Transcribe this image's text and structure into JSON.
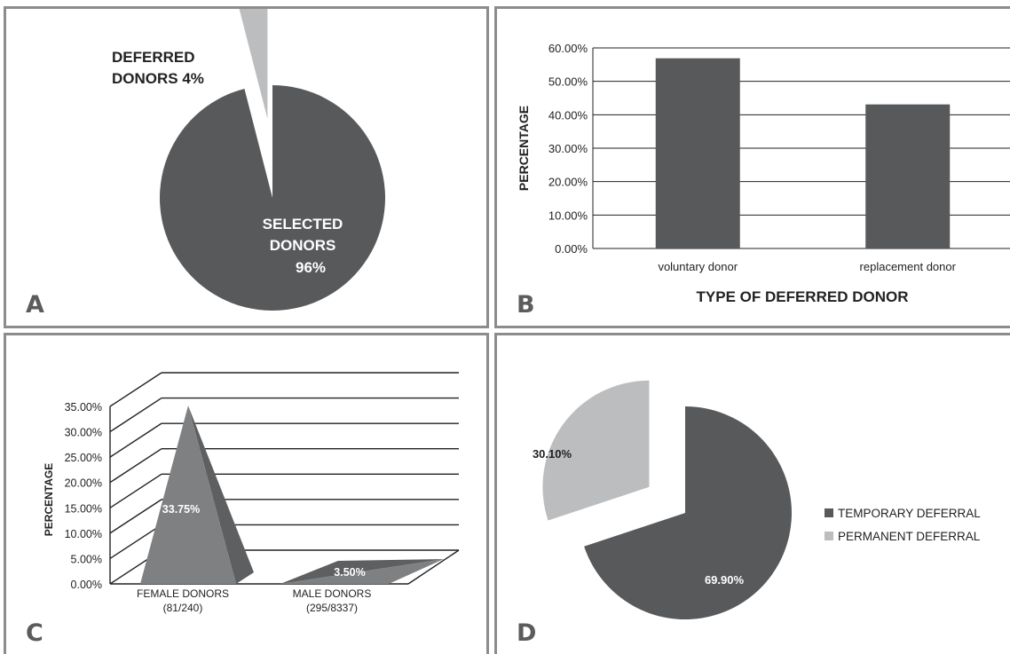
{
  "colors": {
    "dark": "#58595b",
    "light": "#bcbdbf",
    "mid": "#7f8082",
    "mid_dark": "#5e5f61",
    "axis": "#222222",
    "panel_letter": "#5c5c5c"
  },
  "chart_data": [
    {
      "panel_label": "A",
      "type": "pie",
      "slices": [
        {
          "label_lines": [
            "SELECTED",
            "DONORS",
            "96%"
          ],
          "value": 96,
          "color": "#58595b",
          "exploded": false
        },
        {
          "label_lines": [
            "DEFERRED",
            "DONORS 4%"
          ],
          "value": 4,
          "color": "#bcbdbf",
          "exploded": true
        }
      ]
    },
    {
      "panel_label": "B",
      "type": "bar",
      "categories": [
        "voluntary donor",
        "replacement donor"
      ],
      "values": [
        56.9,
        43.1
      ],
      "xlabel": "TYPE OF DEFERRED DONOR",
      "ylabel": "PERCENTAGE",
      "ylim": [
        0,
        60
      ],
      "yticks": [
        "0.00%",
        "10.00%",
        "20.00%",
        "30.00%",
        "40.00%",
        "50.00%",
        "60.00%"
      ],
      "grid": true
    },
    {
      "panel_label": "C",
      "type": "bar",
      "style": "3d-pyramid",
      "categories": [
        [
          "FEMALE DONORS",
          "(81/240)"
        ],
        [
          "MALE DONORS",
          "(295/8337)"
        ]
      ],
      "values": [
        33.75,
        3.5
      ],
      "data_labels": [
        "33.75%",
        "3.50%"
      ],
      "ylabel": "PERCENTAGE",
      "ylim": [
        0,
        35
      ],
      "yticks": [
        "0.00%",
        "5.00%",
        "10.00%",
        "15.00%",
        "20.00%",
        "25.00%",
        "30.00%",
        "35.00%"
      ],
      "grid": true
    },
    {
      "panel_label": "D",
      "type": "pie",
      "slices": [
        {
          "name": "TEMPORARY DEFERRAL",
          "value": 69.9,
          "label": "69.90%",
          "color": "#58595b"
        },
        {
          "name": "PERMANENT DEFERRAL",
          "value": 30.1,
          "label": "30.10%",
          "color": "#bcbdbf"
        }
      ],
      "legend_position": "right"
    }
  ]
}
